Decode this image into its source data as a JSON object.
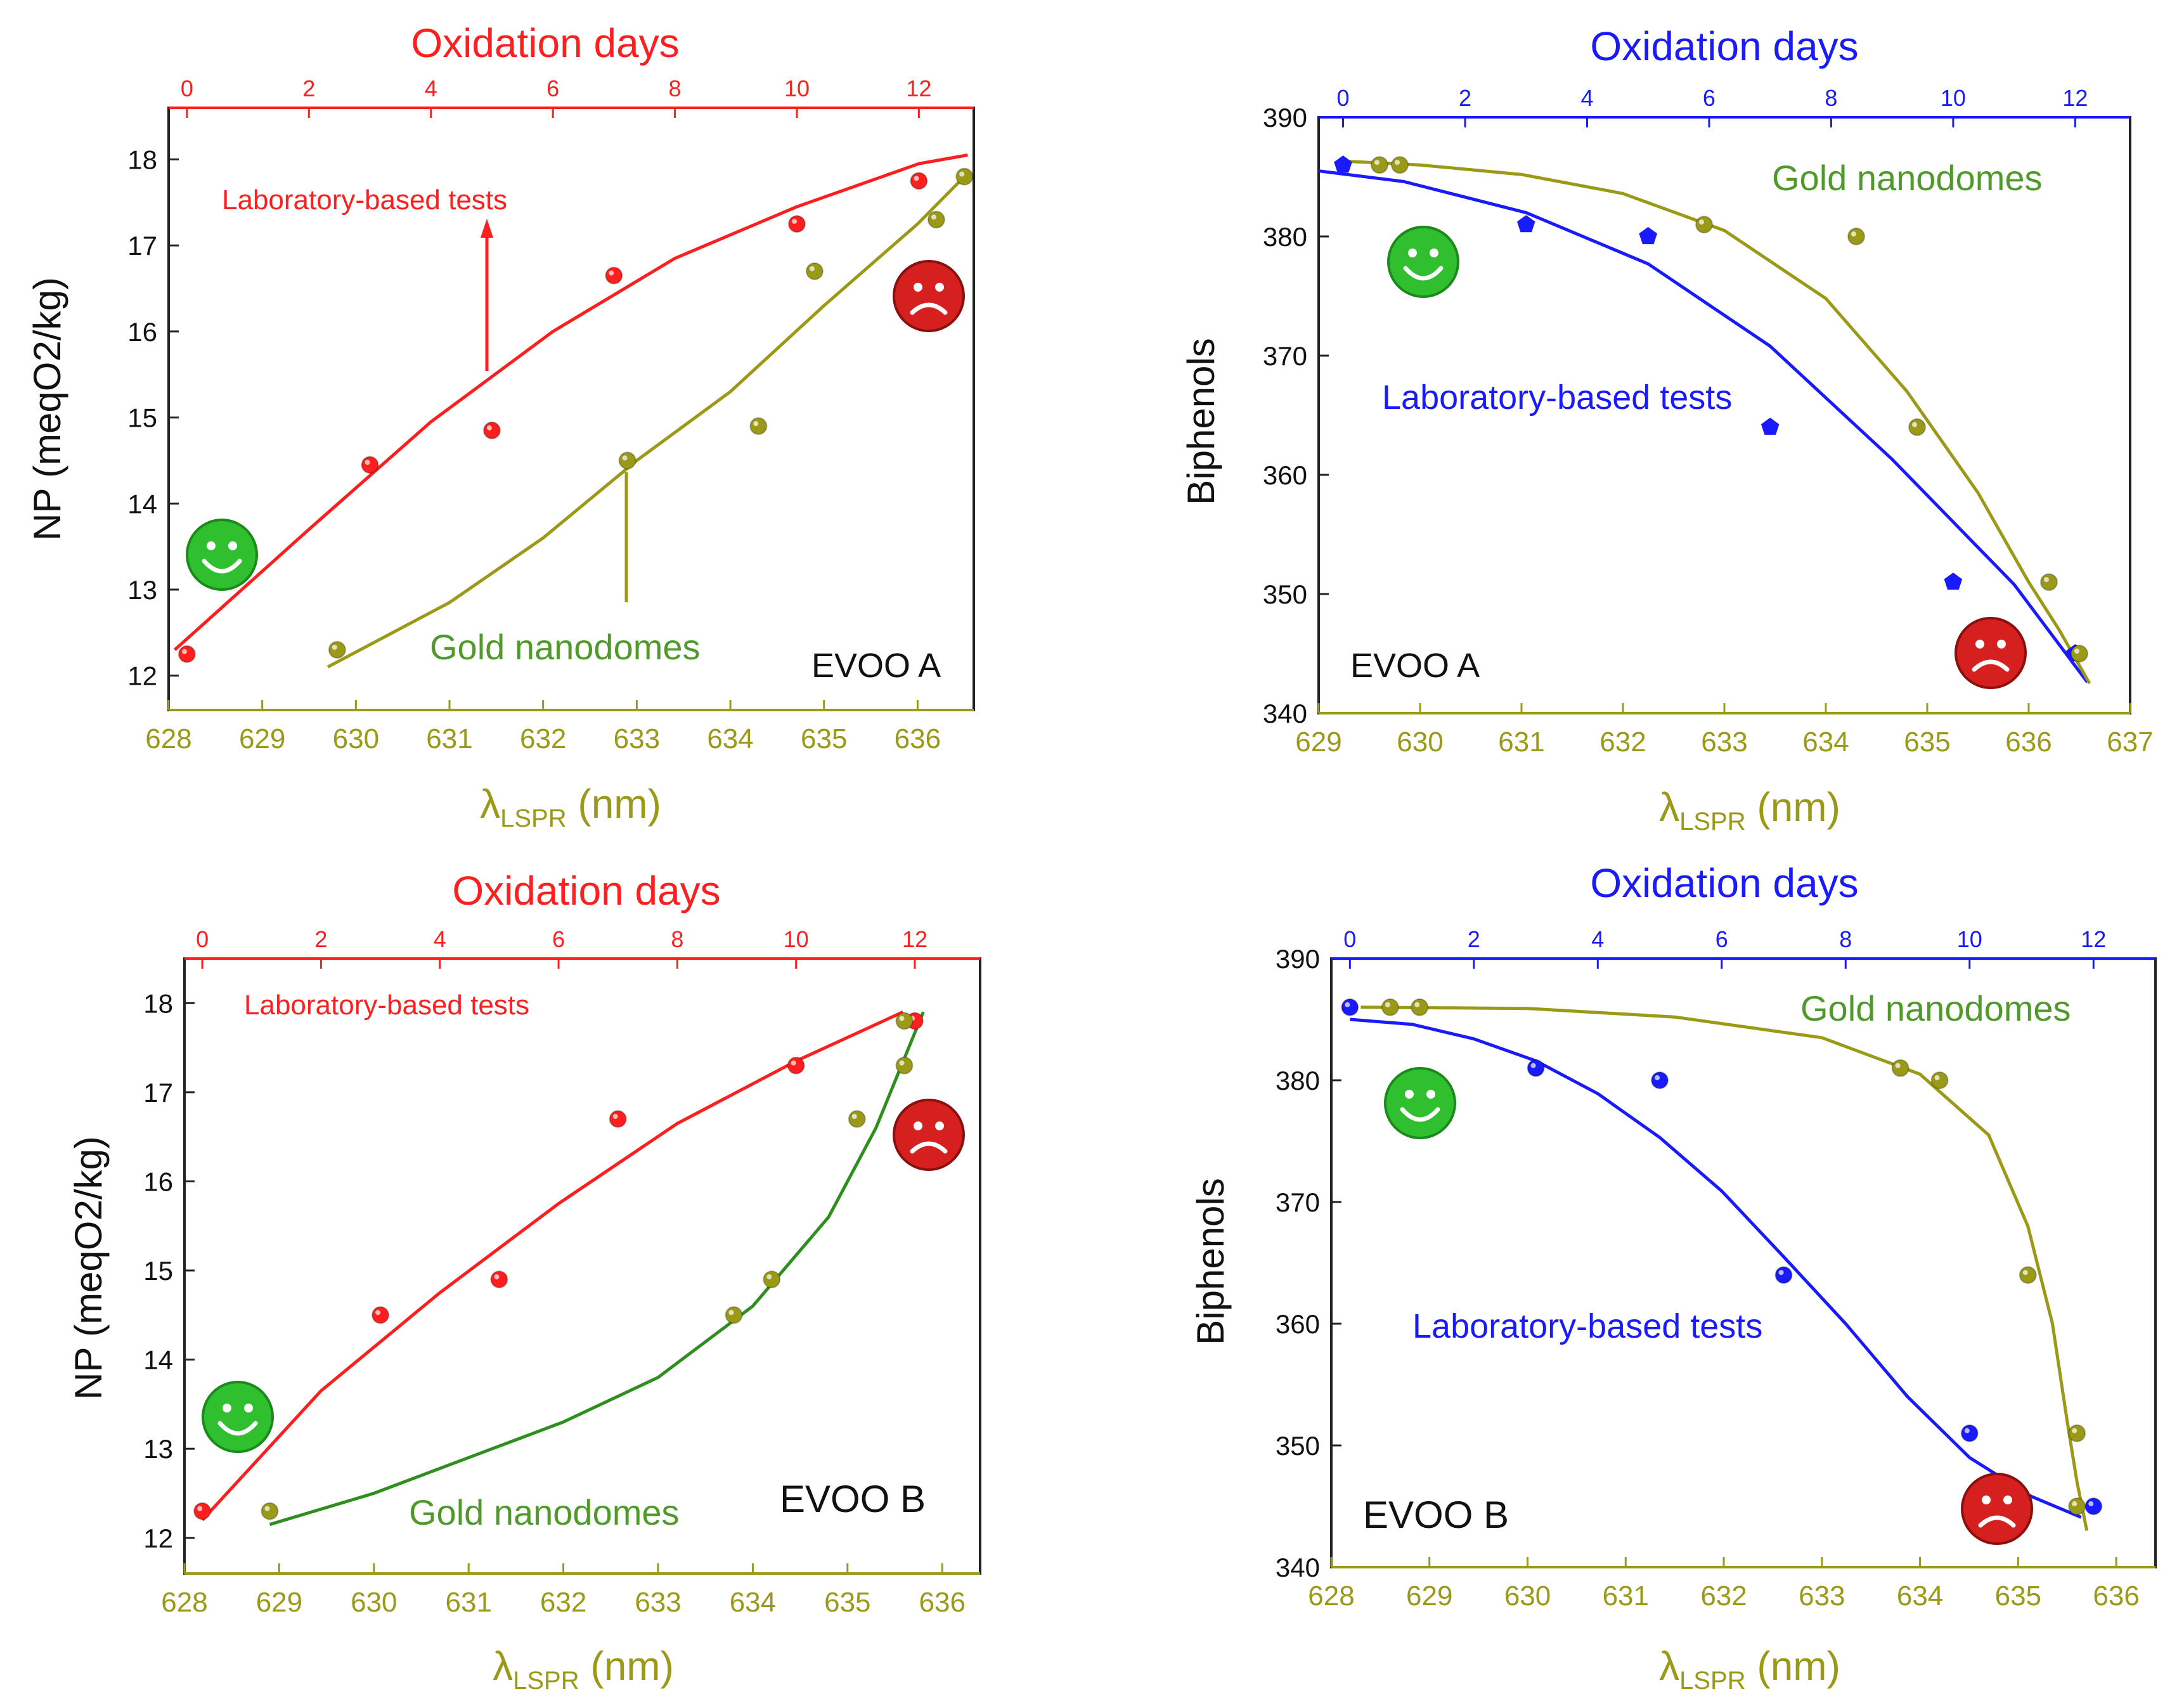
{
  "colors": {
    "red": "#ff1f1f",
    "blue": "#1a1aff",
    "olive": "#9a9a18",
    "green": "#2e8f1e",
    "dark_green_text": "#4f9a2a",
    "axis": "#222222",
    "smiley_green": "#2fbf2f",
    "frown_red": "#d62020"
  },
  "chart_data": [
    {
      "type": "scatter",
      "panel": "top-left",
      "top_axis_title": "Oxidation days",
      "top_axis_color": "red",
      "top_ticks": [
        0,
        2,
        4,
        6,
        8,
        10,
        12
      ],
      "top_range": [
        -0.3,
        12.9
      ],
      "bottom_ticks": [
        628,
        629,
        630,
        631,
        632,
        633,
        634,
        635,
        636
      ],
      "xlim": [
        628,
        636.6
      ],
      "ylim": [
        11.6,
        18.6
      ],
      "y_ticks": [
        12,
        13,
        14,
        15,
        16,
        17,
        18
      ],
      "ylabel": "NP (meqO2/kg)",
      "xlabel": "λLSPR (nm)",
      "evoo_label": "EVOO A",
      "smiley_position": "left",
      "frown_position": "top-right",
      "series": [
        {
          "name": "Laboratory-based tests",
          "axis": "top",
          "color": "red",
          "points": [
            [
              0,
              12.25
            ],
            [
              3,
              14.45
            ],
            [
              5,
              14.85
            ],
            [
              7,
              16.65
            ],
            [
              10,
              17.25
            ],
            [
              12,
              17.75
            ]
          ],
          "fit": [
            [
              -0.2,
              12.3
            ],
            [
              2,
              13.7
            ],
            [
              4,
              14.95
            ],
            [
              6,
              16.0
            ],
            [
              8,
              16.85
            ],
            [
              10,
              17.45
            ],
            [
              12,
              17.95
            ],
            [
              12.8,
              18.05
            ]
          ],
          "label": "Laboratory-based tests",
          "label_position": "top-left"
        },
        {
          "name": "Gold nanodomes",
          "axis": "bottom",
          "color": "olive",
          "points": [
            [
              629.8,
              12.3
            ],
            [
              632.9,
              14.5
            ],
            [
              634.3,
              14.9
            ],
            [
              634.9,
              16.7
            ],
            [
              636.2,
              17.3
            ],
            [
              636.5,
              17.8
            ]
          ],
          "fit": [
            [
              629.7,
              12.1
            ],
            [
              631,
              12.85
            ],
            [
              632,
              13.6
            ],
            [
              633,
              14.5
            ],
            [
              634,
              15.3
            ],
            [
              635,
              16.3
            ],
            [
              636,
              17.25
            ],
            [
              636.5,
              17.8
            ]
          ],
          "label": "Gold nanodomes",
          "label_position": "bottom-center"
        }
      ]
    },
    {
      "type": "scatter",
      "panel": "top-right",
      "top_axis_title": "Oxidation days",
      "top_axis_color": "blue",
      "top_ticks": [
        0,
        2,
        4,
        6,
        8,
        10,
        12
      ],
      "top_range": [
        -0.4,
        12.9
      ],
      "bottom_ticks": [
        629,
        630,
        631,
        632,
        633,
        634,
        635,
        636,
        637
      ],
      "xlim": [
        629,
        637
      ],
      "ylim": [
        340,
        390
      ],
      "y_ticks": [
        340,
        350,
        360,
        370,
        380,
        390
      ],
      "ylabel": "Biphenols",
      "xlabel": "λLSPR (nm)",
      "evoo_label": "EVOO A",
      "smiley_position": "top-left",
      "frown_position": "bottom-right",
      "series": [
        {
          "name": "Laboratory-based tests",
          "axis": "top",
          "color": "blue",
          "marker": "pentagon",
          "points": [
            [
              0,
              386
            ],
            [
              3,
              381
            ],
            [
              5,
              380
            ],
            [
              7,
              364
            ],
            [
              10,
              351
            ],
            [
              12,
              345
            ]
          ],
          "fit": [
            [
              -0.4,
              385.5
            ],
            [
              1,
              384.6
            ],
            [
              3,
              382
            ],
            [
              5,
              377.7
            ],
            [
              7,
              370.8
            ],
            [
              9,
              361.3
            ],
            [
              11,
              350.8
            ],
            [
              12.2,
              342.6
            ]
          ],
          "label": "Laboratory-based tests",
          "label_position": "center"
        },
        {
          "name": "Gold nanodomes",
          "axis": "bottom",
          "color": "olive",
          "points": [
            [
              629.6,
              386
            ],
            [
              629.8,
              386
            ],
            [
              632.8,
              381
            ],
            [
              634.3,
              380
            ],
            [
              634.9,
              364
            ],
            [
              636.2,
              351
            ],
            [
              636.5,
              345
            ]
          ],
          "fit": [
            [
              629.3,
              386.3
            ],
            [
              630,
              386
            ],
            [
              631,
              385.2
            ],
            [
              632,
              383.6
            ],
            [
              633,
              380.5
            ],
            [
              634,
              374.8
            ],
            [
              634.8,
              367
            ],
            [
              635.5,
              358.5
            ],
            [
              636,
              351
            ],
            [
              636.3,
              347
            ],
            [
              636.6,
              342.5
            ]
          ],
          "label": "Gold nanodomes",
          "label_position": "top-right"
        }
      ]
    },
    {
      "type": "scatter",
      "panel": "bottom-left",
      "top_axis_title": "Oxidation days",
      "top_axis_color": "red",
      "top_ticks": [
        0,
        2,
        4,
        6,
        8,
        10,
        12
      ],
      "top_range": [
        -0.3,
        13.1
      ],
      "bottom_ticks": [
        628,
        629,
        630,
        631,
        632,
        633,
        634,
        635,
        636
      ],
      "xlim": [
        628,
        636.4
      ],
      "ylim": [
        11.6,
        18.5
      ],
      "y_ticks": [
        12,
        13,
        14,
        15,
        16,
        17,
        18
      ],
      "ylabel": "NP (meqO2/kg)",
      "xlabel": "λLSPR (nm)",
      "evoo_label": "EVOO B",
      "smiley_position": "bottom-left",
      "frown_position": "right",
      "series": [
        {
          "name": "Laboratory-based tests",
          "axis": "top",
          "color": "red",
          "points": [
            [
              0,
              12.3
            ],
            [
              3,
              14.5
            ],
            [
              5,
              14.9
            ],
            [
              7,
              16.7
            ],
            [
              10,
              17.3
            ],
            [
              12,
              17.8
            ]
          ],
          "fit": [
            [
              0,
              12.2
            ],
            [
              2,
              13.65
            ],
            [
              4,
              14.75
            ],
            [
              6,
              15.75
            ],
            [
              8,
              16.65
            ],
            [
              10,
              17.35
            ],
            [
              11.8,
              17.9
            ]
          ],
          "label": "Laboratory-based tests",
          "label_position": "top-left"
        },
        {
          "name": "Gold nanodomes",
          "axis": "bottom",
          "color": "green",
          "marker_color": "olive",
          "points": [
            [
              628.9,
              12.3
            ],
            [
              633.8,
              14.5
            ],
            [
              634.2,
              14.9
            ],
            [
              635.1,
              16.7
            ],
            [
              635.6,
              17.3
            ],
            [
              635.6,
              17.8
            ]
          ],
          "fit": [
            [
              628.9,
              12.15
            ],
            [
              630,
              12.5
            ],
            [
              631,
              12.9
            ],
            [
              632,
              13.3
            ],
            [
              633,
              13.8
            ],
            [
              634,
              14.6
            ],
            [
              634.8,
              15.6
            ],
            [
              635.3,
              16.6
            ],
            [
              635.8,
              17.9
            ]
          ],
          "label": "Gold nanodomes",
          "label_position": "bottom-center"
        }
      ]
    },
    {
      "type": "scatter",
      "panel": "bottom-right",
      "top_axis_title": "Oxidation days",
      "top_axis_color": "blue",
      "top_ticks": [
        0,
        2,
        4,
        6,
        8,
        10,
        12
      ],
      "top_range": [
        -0.3,
        13.0
      ],
      "bottom_ticks": [
        628,
        629,
        630,
        631,
        632,
        633,
        634,
        635,
        636
      ],
      "xlim": [
        628,
        636.4
      ],
      "ylim": [
        340,
        390
      ],
      "y_ticks": [
        340,
        350,
        360,
        370,
        380,
        390
      ],
      "ylabel": "Biphenols",
      "xlabel": "λLSPR (nm)",
      "evoo_label": "EVOO B",
      "smiley_position": "top-left",
      "frown_position": "bottom-right",
      "series": [
        {
          "name": "Laboratory-based tests",
          "axis": "top",
          "color": "blue",
          "points": [
            [
              0,
              386
            ],
            [
              3,
              381
            ],
            [
              5,
              380
            ],
            [
              7,
              364
            ],
            [
              10,
              351
            ],
            [
              12,
              345
            ]
          ],
          "fit": [
            [
              0,
              385
            ],
            [
              1,
              384.6
            ],
            [
              2,
              383.4
            ],
            [
              3,
              381.6
            ],
            [
              4,
              378.9
            ],
            [
              5,
              375.3
            ],
            [
              6,
              370.9
            ],
            [
              7,
              365.5
            ],
            [
              8,
              360
            ],
            [
              9,
              354
            ],
            [
              10,
              349
            ],
            [
              11,
              345.8
            ],
            [
              11.8,
              344.1
            ]
          ],
          "label": "Laboratory-based tests",
          "label_position": "center"
        },
        {
          "name": "Gold nanodomes",
          "axis": "bottom",
          "color": "olive",
          "points": [
            [
              628.6,
              386
            ],
            [
              628.9,
              386
            ],
            [
              633.8,
              381
            ],
            [
              634.2,
              380
            ],
            [
              635.1,
              364
            ],
            [
              635.6,
              351
            ],
            [
              635.6,
              345
            ]
          ],
          "fit": [
            [
              628.3,
              386
            ],
            [
              630,
              385.9
            ],
            [
              631.5,
              385.2
            ],
            [
              633,
              383.5
            ],
            [
              634,
              380.5
            ],
            [
              634.7,
              375.5
            ],
            [
              635.1,
              368
            ],
            [
              635.35,
              360
            ],
            [
              635.5,
              352
            ],
            [
              635.6,
              347
            ],
            [
              635.7,
              343
            ]
          ],
          "label": "Gold nanodomes",
          "label_position": "top-right"
        }
      ]
    }
  ]
}
